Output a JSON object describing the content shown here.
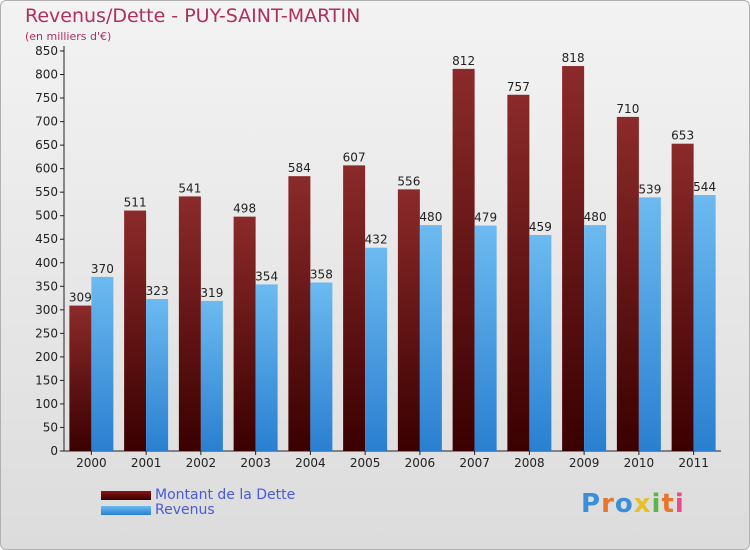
{
  "chart_data": {
    "type": "bar",
    "title": "Revenus/Dette - PUY-SAINT-MARTIN",
    "subtitle": "(en milliers d'€)",
    "categories": [
      "2000",
      "2001",
      "2002",
      "2003",
      "2004",
      "2005",
      "2006",
      "2007",
      "2008",
      "2009",
      "2010",
      "2011"
    ],
    "series": [
      {
        "name": "Montant de la Dette",
        "color": "#7a1010",
        "values": [
          309,
          511,
          541,
          498,
          584,
          607,
          556,
          812,
          757,
          818,
          710,
          653
        ]
      },
      {
        "name": "Revenus",
        "color": "#4aa3e8",
        "values": [
          370,
          323,
          319,
          354,
          358,
          432,
          480,
          479,
          459,
          480,
          539,
          544
        ]
      }
    ],
    "ylim": [
      0,
      850
    ],
    "ytick_step": 50,
    "grid": false,
    "legend_position": "bottom-left"
  },
  "brand": {
    "letters": [
      "P",
      "r",
      "o",
      "x",
      "i",
      "t",
      "i"
    ],
    "colors": [
      "#3a8fd8",
      "#e8762a",
      "#3a8fd8",
      "#e8c02a",
      "#5ab848",
      "#e8762a",
      "#e84a8a"
    ]
  }
}
